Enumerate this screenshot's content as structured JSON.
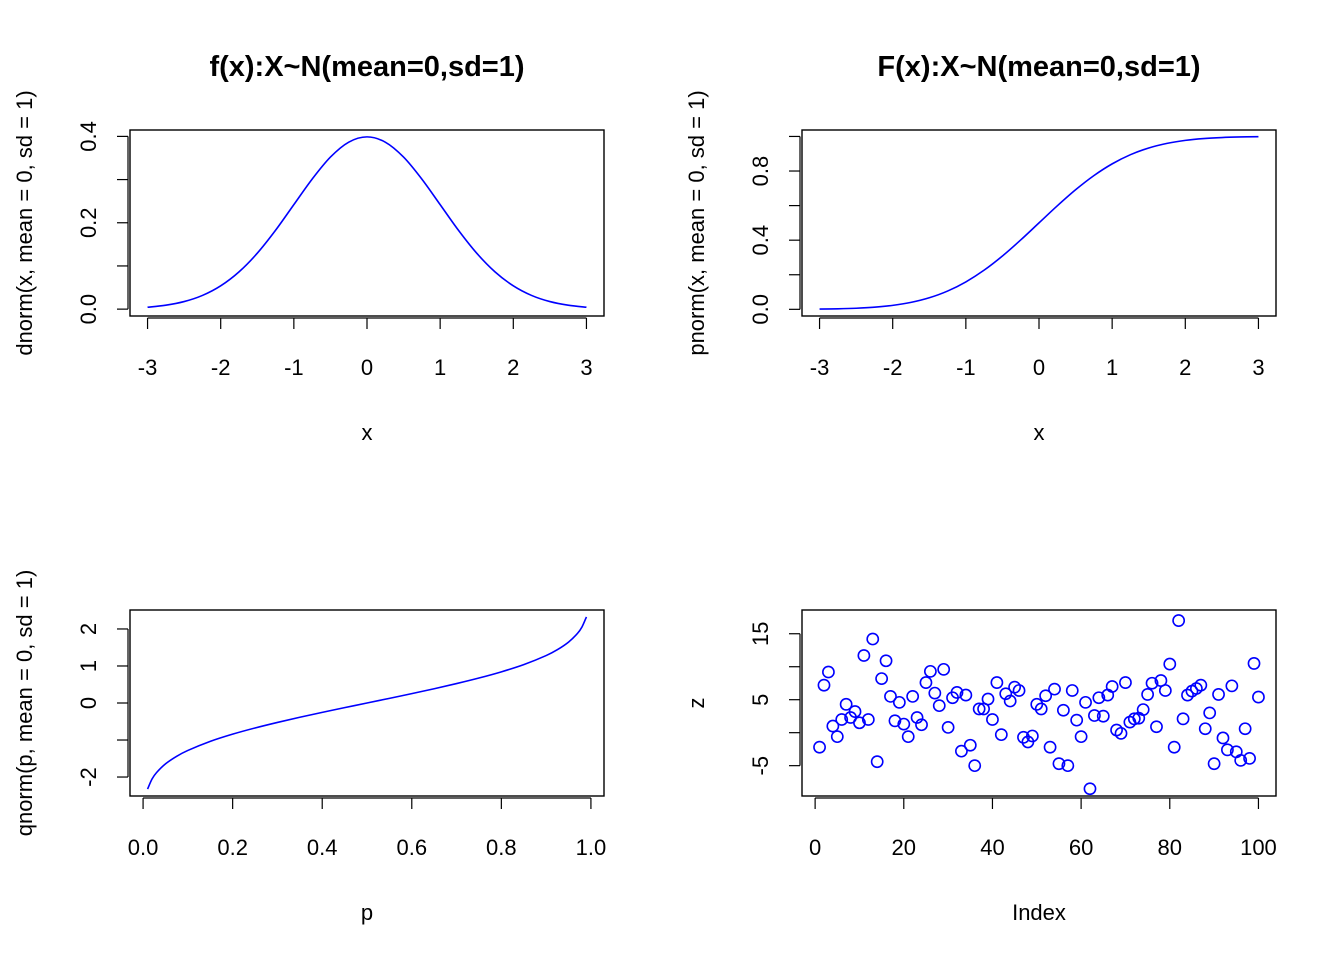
{
  "colors": {
    "series": "#0000ff",
    "axis": "#000000",
    "background": "#ffffff"
  },
  "chart_data": [
    {
      "type": "line",
      "title": "f(x):X~N(mean=0,sd=1)",
      "xlabel": "x",
      "ylabel": "dnorm(x, mean = 0, sd = 1)",
      "xlim": [
        -3.24,
        3.24
      ],
      "ylim": [
        -0.0159,
        0.4148
      ],
      "x_ticks": [
        -3,
        -2,
        -1,
        0,
        1,
        2,
        3
      ],
      "x_tick_labels": [
        "-3",
        "-2",
        "-1",
        "0",
        "1",
        "2",
        "3"
      ],
      "y_ticks": [
        0.0,
        0.1,
        0.2,
        0.3,
        0.4
      ],
      "y_tick_labels": [
        "0.0",
        "",
        "0.2",
        "",
        "0.4"
      ],
      "series": [
        {
          "x": [
            -3,
            -2.75,
            -2.5,
            -2.25,
            -2,
            -1.75,
            -1.5,
            -1.25,
            -1,
            -0.75,
            -0.5,
            -0.25,
            0,
            0.25,
            0.5,
            0.75,
            1,
            1.25,
            1.5,
            1.75,
            2,
            2.25,
            2.5,
            2.75,
            3
          ],
          "values": [
            0.0044,
            0.0091,
            0.0175,
            0.0317,
            0.054,
            0.0863,
            0.1295,
            0.1826,
            0.242,
            0.3011,
            0.3521,
            0.3867,
            0.3989,
            0.3867,
            0.3521,
            0.3011,
            0.242,
            0.1826,
            0.1295,
            0.0863,
            0.054,
            0.0317,
            0.0175,
            0.0091,
            0.0044
          ]
        }
      ],
      "grid": false,
      "legend": "none"
    },
    {
      "type": "line",
      "title": "F(x):X~N(mean=0,sd=1)",
      "xlabel": "x",
      "ylabel": "pnorm(x, mean = 0, sd = 1)",
      "xlim": [
        -3.24,
        3.24
      ],
      "ylim": [
        -0.0386,
        1.0373
      ],
      "x_ticks": [
        -3,
        -2,
        -1,
        0,
        1,
        2,
        3
      ],
      "x_tick_labels": [
        "-3",
        "-2",
        "-1",
        "0",
        "1",
        "2",
        "3"
      ],
      "y_ticks": [
        0.0,
        0.2,
        0.4,
        0.6,
        0.8,
        1.0
      ],
      "y_tick_labels": [
        "0.0",
        "",
        "0.4",
        "",
        "0.8",
        ""
      ],
      "series": [
        {
          "x": [
            -3,
            -2.75,
            -2.5,
            -2.25,
            -2,
            -1.75,
            -1.5,
            -1.25,
            -1,
            -0.75,
            -0.5,
            -0.25,
            0,
            0.25,
            0.5,
            0.75,
            1,
            1.25,
            1.5,
            1.75,
            2,
            2.25,
            2.5,
            2.75,
            3
          ],
          "values": [
            0.0013,
            0.003,
            0.0062,
            0.0122,
            0.0228,
            0.0401,
            0.0668,
            0.1056,
            0.1587,
            0.2266,
            0.3085,
            0.4013,
            0.5,
            0.5987,
            0.6915,
            0.7734,
            0.8413,
            0.8944,
            0.9332,
            0.9599,
            0.9772,
            0.9878,
            0.9938,
            0.997,
            0.9987
          ]
        }
      ],
      "grid": false,
      "legend": "none"
    },
    {
      "type": "line",
      "title": "",
      "xlabel": "p",
      "ylabel": "qnorm(p, mean = 0, sd = 1)",
      "xlim": [
        -0.0292,
        1.0292
      ],
      "ylim": [
        -2.5124,
        2.5124
      ],
      "x_ticks": [
        0.0,
        0.2,
        0.4,
        0.6,
        0.8,
        1.0
      ],
      "x_tick_labels": [
        "0.0",
        "0.2",
        "0.4",
        "0.6",
        "0.8",
        "1.0"
      ],
      "y_ticks": [
        -2,
        -1,
        0,
        1,
        2
      ],
      "y_tick_labels": [
        "-2",
        "",
        "0",
        "1",
        "2"
      ],
      "series": [
        {
          "x": [
            0.01,
            0.02,
            0.03,
            0.05,
            0.075,
            0.1,
            0.15,
            0.2,
            0.25,
            0.3,
            0.35,
            0.4,
            0.45,
            0.5,
            0.55,
            0.6,
            0.65,
            0.7,
            0.75,
            0.8,
            0.85,
            0.9,
            0.925,
            0.95,
            0.97,
            0.98,
            0.99
          ],
          "values": [
            -2.3263,
            -2.0537,
            -1.8808,
            -1.6449,
            -1.4395,
            -1.2816,
            -1.0364,
            -0.8416,
            -0.6745,
            -0.5244,
            -0.3853,
            -0.2533,
            -0.1257,
            0,
            0.1257,
            0.2533,
            0.3853,
            0.5244,
            0.6745,
            0.8416,
            1.0364,
            1.2816,
            1.4395,
            1.6449,
            1.8808,
            2.0537,
            2.3263
          ]
        }
      ],
      "grid": false,
      "legend": "none"
    },
    {
      "type": "scatter",
      "title": "",
      "xlabel": "Index",
      "ylabel": "z",
      "xlim": [
        -2.96,
        103.96
      ],
      "ylim": [
        -9.6,
        18.6
      ],
      "x_ticks": [
        0,
        20,
        40,
        60,
        80,
        100
      ],
      "x_tick_labels": [
        "0",
        "20",
        "40",
        "60",
        "80",
        "100"
      ],
      "y_ticks": [
        -5,
        0,
        5,
        10,
        15
      ],
      "y_tick_labels": [
        "-5",
        "",
        "5",
        "",
        "15"
      ],
      "series": [
        {
          "x": [
            1,
            2,
            3,
            4,
            5,
            6,
            7,
            8,
            9,
            10,
            11,
            12,
            13,
            14,
            15,
            16,
            17,
            18,
            19,
            20,
            21,
            22,
            23,
            24,
            25,
            26,
            27,
            28,
            29,
            30,
            31,
            32,
            33,
            34,
            35,
            36,
            37,
            38,
            39,
            40,
            41,
            42,
            43,
            44,
            45,
            46,
            47,
            48,
            49,
            50,
            51,
            52,
            53,
            54,
            55,
            56,
            57,
            58,
            59,
            60,
            61,
            62,
            63,
            64,
            65,
            66,
            67,
            68,
            69,
            70,
            71,
            72,
            73,
            74,
            75,
            76,
            77,
            78,
            79,
            80,
            81,
            82,
            83,
            84,
            85,
            86,
            87,
            88,
            89,
            90,
            91,
            92,
            93,
            94,
            95,
            96,
            97,
            98,
            99,
            100
          ],
          "values": [
            -2.2,
            7.2,
            9.2,
            1.0,
            -0.6,
            2.0,
            4.3,
            2.3,
            3.2,
            1.5,
            11.7,
            2.0,
            14.2,
            -4.4,
            8.2,
            10.9,
            5.5,
            1.8,
            4.6,
            1.3,
            -0.6,
            5.5,
            2.3,
            1.2,
            7.6,
            9.3,
            6.0,
            4.1,
            9.6,
            0.8,
            5.3,
            6.1,
            -2.8,
            5.7,
            -1.9,
            -5.0,
            3.6,
            3.6,
            5.1,
            2.0,
            7.6,
            -0.3,
            5.9,
            4.8,
            6.9,
            6.4,
            -0.7,
            -1.4,
            -0.5,
            4.3,
            3.6,
            5.6,
            -2.2,
            6.6,
            -4.7,
            3.4,
            -5.0,
            6.4,
            1.9,
            -0.6,
            4.6,
            -8.5,
            2.6,
            5.3,
            2.5,
            5.7,
            7.0,
            0.4,
            -0.1,
            7.6,
            1.6,
            2.1,
            2.2,
            3.5,
            5.8,
            7.5,
            0.9,
            7.9,
            6.4,
            10.4,
            -2.2,
            17.0,
            2.1,
            5.7,
            6.3,
            6.7,
            7.2,
            0.6,
            3.0,
            -4.7,
            5.8,
            -0.8,
            -2.6,
            7.1,
            -2.9,
            -4.2,
            0.6,
            -3.9,
            10.5,
            5.4
          ]
        }
      ],
      "grid": false,
      "legend": "none"
    }
  ]
}
